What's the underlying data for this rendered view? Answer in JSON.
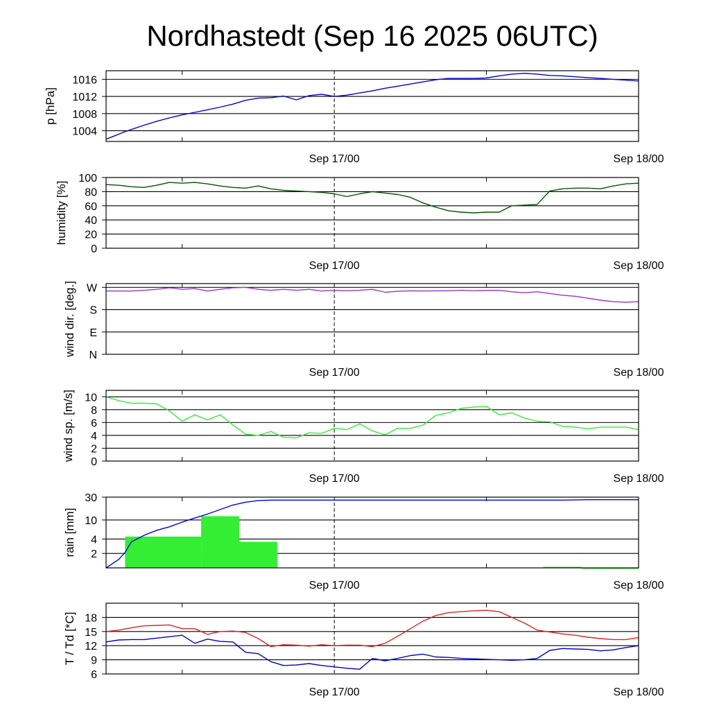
{
  "title": "Nordhastedt (Sep 16 2025 06UTC)",
  "x_tick_labels": [
    "Sep 17/00",
    "Sep 18/00"
  ],
  "chart_data": [
    {
      "type": "line",
      "ylabel": "p [hPa]",
      "x_range_hours": [
        0,
        42
      ],
      "ylim": [
        1001.5,
        1018
      ],
      "yticks": [
        1004,
        1008,
        1012,
        1016
      ],
      "ytick_labels": [
        "1004",
        "1008",
        "1012",
        "1016"
      ],
      "series": [
        {
          "color": "#0000dd",
          "x": [
            0,
            0.5,
            1,
            1.5,
            2,
            3,
            4,
            5,
            6,
            7,
            8,
            9,
            10,
            11,
            12,
            13,
            14,
            15,
            16,
            17,
            18,
            19,
            20,
            21,
            22,
            23,
            24,
            25,
            26,
            27,
            28,
            29,
            30,
            31,
            32,
            33,
            34,
            35,
            36,
            37,
            38,
            39,
            40,
            41,
            42
          ],
          "values": [
            1002.0,
            1002.6,
            1003.2,
            1003.8,
            1004.3,
            1005.3,
            1006.2,
            1007.0,
            1007.7,
            1008.3,
            1008.9,
            1009.5,
            1010.2,
            1011.1,
            1011.6,
            1011.7,
            1012.1,
            1011.2,
            1012.2,
            1012.5,
            1012.0,
            1012.3,
            1012.8,
            1013.3,
            1013.9,
            1014.4,
            1014.9,
            1015.4,
            1015.9,
            1016.2,
            1016.2,
            1016.2,
            1016.3,
            1016.8,
            1017.2,
            1017.4,
            1017.2,
            1016.9,
            1016.8,
            1016.6,
            1016.4,
            1016.2,
            1016.0,
            1015.8,
            1015.6
          ]
        }
      ]
    },
    {
      "type": "line",
      "ylabel": "humidity [%]",
      "x_range_hours": [
        0,
        42
      ],
      "ylim": [
        0,
        100
      ],
      "yticks": [
        0,
        20,
        40,
        60,
        80,
        100
      ],
      "ytick_labels": [
        "0",
        "20",
        "40",
        "60",
        "80",
        "100"
      ],
      "series": [
        {
          "color": "#005500",
          "x": [
            0,
            1,
            2,
            3,
            4,
            5,
            6,
            7,
            8,
            9,
            10,
            11,
            12,
            13,
            14,
            15,
            16,
            17,
            18,
            19,
            20,
            21,
            22,
            23,
            24,
            25,
            26,
            27,
            28,
            29,
            30,
            31,
            32,
            33,
            34,
            35,
            36,
            37,
            38,
            39,
            40,
            41,
            42
          ],
          "values": [
            90,
            89,
            87,
            86,
            89,
            93,
            92,
            93,
            91,
            88,
            86,
            85,
            88,
            84,
            82,
            81,
            80,
            79,
            77,
            73,
            77,
            80,
            78,
            76,
            72,
            64,
            58,
            53,
            51,
            50,
            51,
            51,
            60,
            61,
            62,
            81,
            84,
            85,
            85,
            84,
            88,
            91,
            92
          ]
        }
      ]
    },
    {
      "type": "line",
      "ylabel": "wind dir. [deg.]",
      "x_range_hours": [
        0,
        42
      ],
      "ylim": [
        0,
        285
      ],
      "yticks": [
        0,
        90,
        180,
        270
      ],
      "ytick_labels": [
        "N",
        "E",
        "S",
        "W"
      ],
      "series": [
        {
          "color": "#9933cc",
          "x": [
            0,
            1,
            2,
            3,
            4,
            5,
            6,
            7,
            8,
            9,
            10,
            11,
            12,
            13,
            14,
            15,
            16,
            17,
            18,
            19,
            20,
            21,
            22,
            23,
            24,
            25,
            26,
            27,
            28,
            29,
            30,
            31,
            32,
            33,
            34,
            35,
            36,
            37,
            38,
            39,
            40,
            41,
            42
          ],
          "values": [
            255,
            255,
            255,
            258,
            262,
            268,
            262,
            265,
            255,
            262,
            268,
            270,
            262,
            258,
            262,
            258,
            262,
            255,
            258,
            256,
            258,
            262,
            250,
            254,
            256,
            255,
            256,
            256,
            258,
            256,
            257,
            258,
            252,
            248,
            252,
            245,
            238,
            234,
            226,
            218,
            212,
            210,
            212
          ]
        }
      ]
    },
    {
      "type": "line",
      "ylabel": "wind sp. [m/s]",
      "x_range_hours": [
        0,
        42
      ],
      "ylim": [
        0,
        11
      ],
      "yticks": [
        0,
        2,
        4,
        6,
        8,
        10
      ],
      "ytick_labels": [
        "0",
        "2",
        "4",
        "6",
        "8",
        "10"
      ],
      "series": [
        {
          "color": "#33ee33",
          "x": [
            0,
            1,
            2,
            3,
            4,
            5,
            6,
            7,
            8,
            9,
            10,
            11,
            12,
            13,
            14,
            15,
            16,
            17,
            18,
            19,
            20,
            21,
            22,
            23,
            24,
            25,
            26,
            27,
            28,
            29,
            30,
            31,
            32,
            33,
            34,
            35,
            36,
            37,
            38,
            39,
            40,
            41,
            42
          ],
          "values": [
            10.0,
            9.4,
            9.0,
            9.0,
            8.9,
            7.8,
            6.2,
            7.2,
            6.4,
            7.2,
            5.6,
            4.2,
            4.0,
            4.6,
            3.7,
            3.6,
            4.4,
            4.3,
            5.1,
            4.9,
            5.8,
            4.7,
            4.1,
            5.1,
            5.1,
            5.6,
            7.1,
            7.5,
            8.2,
            8.4,
            8.5,
            7.2,
            7.5,
            6.7,
            6.2,
            6.1,
            5.4,
            5.3,
            5.0,
            5.3,
            5.3,
            5.3,
            4.9
          ]
        }
      ]
    },
    {
      "type": "bar+line",
      "ylabel": "rain [mm]",
      "x_range_hours": [
        0,
        42
      ],
      "yscale": "log",
      "ylim": [
        1,
        30
      ],
      "yticks": [
        2,
        4,
        10,
        30
      ],
      "ytick_labels": [
        "2",
        "4",
        "10",
        "30"
      ],
      "bars": {
        "color": "#33ee33",
        "x_start": [
          1.5,
          7.5,
          10.5,
          34.5,
          37.5
        ],
        "x_end": [
          7.5,
          10.5,
          13.5,
          37.5,
          42
        ],
        "values": [
          4.5,
          12.0,
          3.5,
          1.05,
          1.0
        ]
      },
      "series": [
        {
          "color": "#0000dd",
          "x": [
            0,
            1,
            1.5,
            2,
            3,
            4,
            5,
            6,
            7,
            8,
            9,
            10,
            11,
            12,
            13,
            14,
            16,
            18,
            20,
            24,
            30,
            36,
            38,
            42
          ],
          "values": [
            1.0,
            1.5,
            2.1,
            3.5,
            4.8,
            6.1,
            7.2,
            9.0,
            11.0,
            13.3,
            16.5,
            20.5,
            23.5,
            25.5,
            26.0,
            26.0,
            26.0,
            26.0,
            26.0,
            26.0,
            26.0,
            26.0,
            26.5,
            26.5
          ]
        }
      ]
    },
    {
      "type": "line",
      "ylabel": "T / Td [*C]",
      "x_range_hours": [
        0,
        42
      ],
      "ylim": [
        6,
        21
      ],
      "yticks": [
        6,
        9,
        12,
        15,
        18
      ],
      "ytick_labels": [
        "6",
        "9",
        "12",
        "15",
        "18"
      ],
      "series": [
        {
          "color": "#dd2222",
          "x": [
            0,
            1,
            2,
            3,
            4,
            5,
            6,
            7,
            8,
            9,
            10,
            11,
            12,
            13,
            14,
            15,
            16,
            17,
            18,
            19,
            20,
            21,
            22,
            23,
            24,
            25,
            26,
            27,
            28,
            29,
            30,
            31,
            32,
            33,
            34,
            35,
            36,
            37,
            38,
            39,
            40,
            41,
            42
          ],
          "values": [
            15.0,
            15.3,
            15.8,
            16.2,
            16.3,
            16.4,
            15.6,
            15.6,
            14.4,
            15.0,
            15.1,
            14.8,
            13.5,
            11.8,
            12.2,
            12.1,
            11.9,
            12.2,
            12.0,
            12.1,
            12.1,
            11.8,
            12.5,
            14.0,
            15.6,
            17.2,
            18.4,
            19.0,
            19.2,
            19.4,
            19.5,
            19.2,
            18.0,
            16.8,
            15.3,
            14.9,
            14.5,
            14.2,
            13.8,
            13.5,
            13.3,
            13.3,
            13.7
          ]
        },
        {
          "color": "#0000cc",
          "x": [
            0,
            1,
            2,
            3,
            4,
            5,
            6,
            7,
            8,
            9,
            10,
            11,
            12,
            13,
            14,
            15,
            16,
            17,
            18,
            19,
            20,
            21,
            22,
            23,
            24,
            25,
            26,
            27,
            28,
            29,
            30,
            31,
            32,
            33,
            34,
            35,
            36,
            37,
            38,
            39,
            40,
            41,
            42
          ],
          "values": [
            12.8,
            13.2,
            13.3,
            13.3,
            13.6,
            13.9,
            14.2,
            12.5,
            13.4,
            12.9,
            12.8,
            10.6,
            10.3,
            8.6,
            7.8,
            7.9,
            8.2,
            7.8,
            7.5,
            7.2,
            7.0,
            9.3,
            8.8,
            9.3,
            9.9,
            10.2,
            9.6,
            9.5,
            9.3,
            9.2,
            9.1,
            9.0,
            8.9,
            9.0,
            9.3,
            11.0,
            11.4,
            11.3,
            11.2,
            10.9,
            11.1,
            11.6,
            12.0
          ]
        }
      ]
    }
  ]
}
